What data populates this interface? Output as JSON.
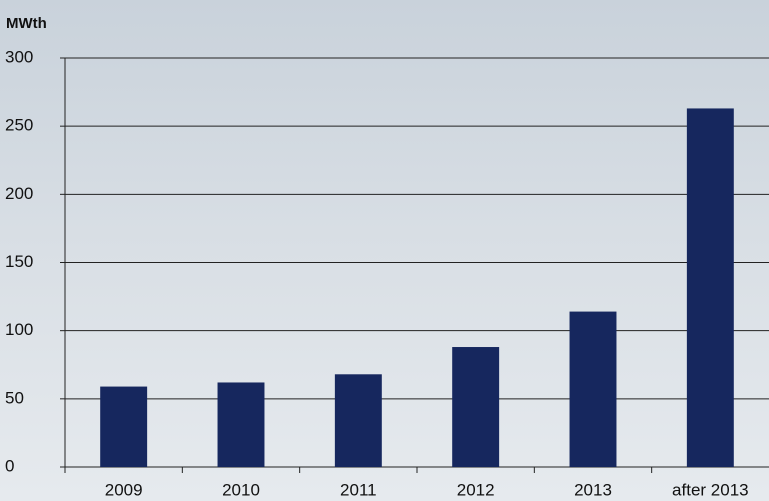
{
  "chart_data": {
    "type": "bar",
    "y_label": "MWth",
    "categories": [
      "2009",
      "2010",
      "2011",
      "2012",
      "2013",
      "after 2013"
    ],
    "values": [
      59,
      62,
      68,
      88,
      114,
      263
    ],
    "color": "#16275e",
    "ylim": [
      0,
      300
    ],
    "yticks": [
      0,
      50,
      100,
      150,
      200,
      250,
      300
    ],
    "grid": true
  }
}
